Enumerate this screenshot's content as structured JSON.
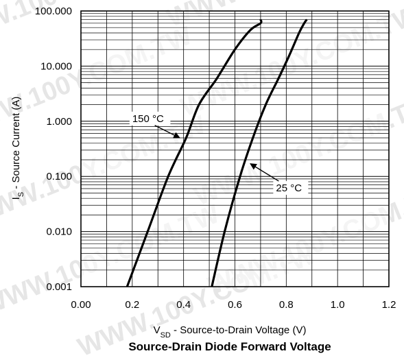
{
  "watermark": "WWW.100Y.COM.TW",
  "chart_data": {
    "type": "line",
    "title": "Source-Drain Diode Forward Voltage",
    "xlabel_main": "V",
    "xlabel_sub": "SD",
    "xlabel_rest": " - Source-to-Drain Voltage (V)",
    "ylabel_main": "I",
    "ylabel_sub": "S",
    "ylabel_rest": " - Source Current (A)",
    "xlim": [
      0.0,
      1.2
    ],
    "ylim": [
      0.001,
      100
    ],
    "yscale": "log",
    "grid": true,
    "x_ticks": [
      "0.00",
      "0.2",
      "0.4",
      "0.6",
      "0.8",
      "1.0",
      "1.2"
    ],
    "x_tick_values": [
      0.0,
      0.2,
      0.4,
      0.6,
      0.8,
      1.0,
      1.2
    ],
    "y_ticks": [
      "0.001",
      "0.010",
      "0.100",
      "1.000",
      "10.000",
      "100.000"
    ],
    "y_tick_values": [
      0.001,
      0.01,
      0.1,
      1,
      10,
      100
    ],
    "series": [
      {
        "name": "150 °C",
        "x": [
          0.18,
          0.26,
          0.34,
          0.41,
          0.46,
          0.53,
          0.6,
          0.66,
          0.7,
          0.7
        ],
        "y": [
          0.001,
          0.01,
          0.1,
          0.5,
          2.0,
          6.0,
          20,
          45,
          60,
          70
        ]
      },
      {
        "name": "25 °C",
        "x": [
          0.51,
          0.56,
          0.62,
          0.67,
          0.72,
          0.77,
          0.81,
          0.85,
          0.87,
          0.88
        ],
        "y": [
          0.001,
          0.01,
          0.1,
          0.5,
          2.0,
          6.0,
          15,
          40,
          60,
          70
        ]
      }
    ],
    "annotations": [
      {
        "text": "150 °C",
        "series": "150 °C",
        "x": 0.385,
        "y": 0.5
      },
      {
        "text": "25 °C",
        "series": "25 °C",
        "x": 0.66,
        "y": 0.17
      }
    ]
  }
}
